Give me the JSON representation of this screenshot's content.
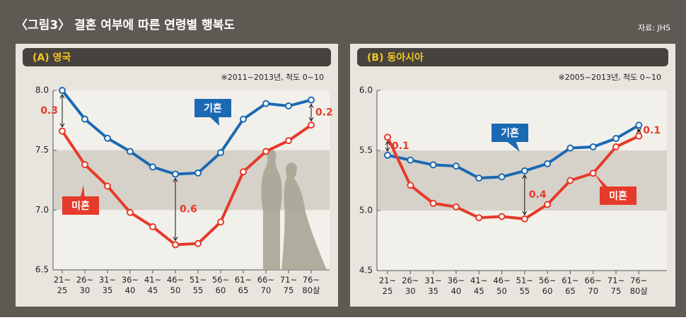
{
  "title": "〈그림3〉 결혼 여부에 따른 연령별 행복도",
  "source": "자료: JHS",
  "chart_data": [
    {
      "type": "line",
      "title": "(A) 영국",
      "note": "※2011~2013년, 척도 0~10",
      "categories": [
        "21~25",
        "26~30",
        "31~35",
        "36~40",
        "41~45",
        "46~50",
        "51~55",
        "56~60",
        "61~65",
        "66~70",
        "71~75",
        "76~80살"
      ],
      "series": [
        {
          "name": "기혼",
          "color": "#1b69b3",
          "values": [
            8.0,
            7.76,
            7.6,
            7.49,
            7.36,
            7.3,
            7.31,
            7.48,
            7.76,
            7.89,
            7.87,
            7.92
          ]
        },
        {
          "name": "미혼",
          "color": "#e63a2a",
          "values": [
            7.66,
            7.38,
            7.2,
            6.98,
            6.86,
            6.71,
            6.72,
            6.9,
            7.32,
            7.49,
            7.58,
            7.71
          ]
        }
      ],
      "annotations": [
        "0.3",
        "0.6",
        "0.2"
      ],
      "ylim": [
        6.5,
        8.0
      ],
      "yticks": [
        {
          "value": 8.0,
          "label": "8.0"
        },
        7.5,
        {
          "value": 7.0,
          "label": "7.0"
        },
        6.5
      ]
    },
    {
      "type": "line",
      "title": "(B) 동아시아",
      "note": "※2005~2013년, 척도 0~10",
      "categories": [
        "21~25",
        "26~30",
        "31~35",
        "36~40",
        "41~45",
        "46~50",
        "51~55",
        "56~60",
        "61~65",
        "66~70",
        "71~75",
        "76~80살"
      ],
      "series": [
        {
          "name": "기혼",
          "color": "#1b69b3",
          "values": [
            5.46,
            5.42,
            5.38,
            5.37,
            5.27,
            5.28,
            5.33,
            5.39,
            5.52,
            5.53,
            5.6,
            5.71
          ]
        },
        {
          "name": "미혼",
          "color": "#e63a2a",
          "values": [
            5.61,
            5.21,
            5.06,
            5.03,
            4.94,
            4.95,
            4.93,
            5.05,
            5.25,
            5.31,
            5.53,
            5.62
          ]
        }
      ],
      "annotations": [
        "0.1",
        "0.4",
        "0.1"
      ],
      "ylim": [
        4.5,
        6.0
      ],
      "yticks": [
        {
          "value": 6.0,
          "label": "6.0"
        },
        5.5,
        {
          "value": 5.0,
          "label": "5.0"
        },
        4.5
      ]
    }
  ]
}
